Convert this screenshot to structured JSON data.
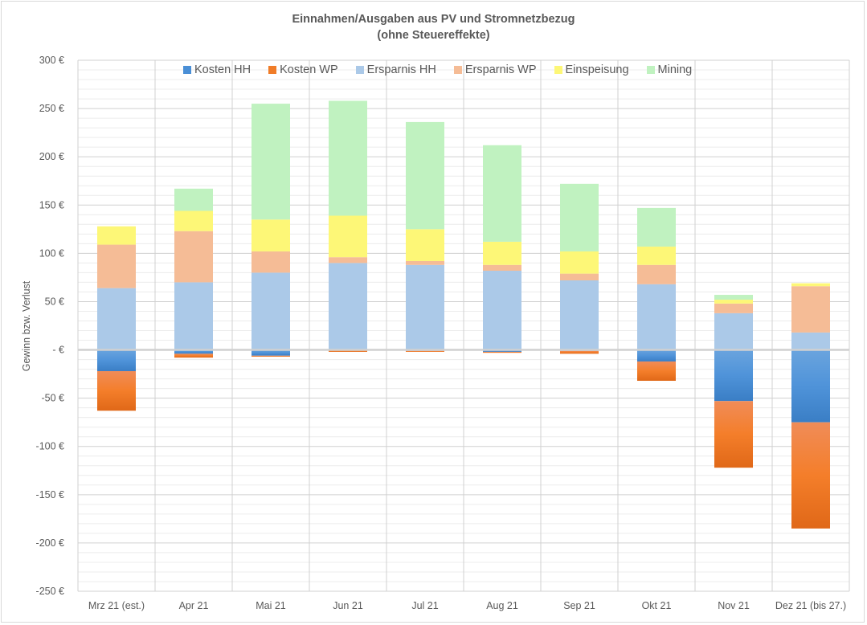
{
  "chart_data": {
    "type": "bar",
    "stacked": true,
    "title": "Einnahmen/Ausgaben aus PV und Stromnetzbezug",
    "subtitle": "(ohne Steuereffekte)",
    "xlabel": "",
    "ylabel": "Gewinn bzw. Verlust",
    "ylim": [
      -250,
      300
    ],
    "yticks": [
      300,
      250,
      200,
      150,
      100,
      50,
      0,
      -50,
      -100,
      -150,
      -200,
      -250
    ],
    "ytick_labels": [
      "300 €",
      "250 €",
      "200 €",
      "150 €",
      "100 €",
      "50 €",
      "-   €",
      "-50 €",
      "-100 €",
      "-150 €",
      "-200 €",
      "-250 €"
    ],
    "grid": true,
    "legend_position": "top",
    "categories": [
      "Mrz 21 (est.)",
      "Apr 21",
      "Mai 21",
      "Jun 21",
      "Jul 21",
      "Aug 21",
      "Sep 21",
      "Okt 21",
      "Nov 21",
      "Dez 21 (bis 27.)"
    ],
    "series": [
      {
        "name": "Kosten HH",
        "color": "#4a8fd6",
        "values": [
          -22,
          -4,
          -6,
          0,
          -1,
          -2,
          -1,
          -12,
          -53,
          -75
        ]
      },
      {
        "name": "Kosten WP",
        "color": "#f07c28",
        "values": [
          -41,
          -4,
          -1,
          -2,
          -1,
          -1,
          -3,
          -20,
          -69,
          -110
        ]
      },
      {
        "name": "Ersparnis HH",
        "color": "#abc9e8",
        "values": [
          64,
          70,
          80,
          90,
          88,
          82,
          72,
          68,
          38,
          18
        ]
      },
      {
        "name": "Ersparnis WP",
        "color": "#f5bc96",
        "values": [
          45,
          53,
          22,
          6,
          4,
          6,
          7,
          20,
          10,
          48
        ]
      },
      {
        "name": "Einspeisung",
        "color": "#fdf777",
        "values": [
          19,
          21,
          33,
          43,
          33,
          24,
          23,
          19,
          4,
          3
        ]
      },
      {
        "name": "Mining",
        "color": "#c0f2c0",
        "values": [
          0,
          23,
          120,
          119,
          111,
          100,
          70,
          40,
          5,
          0
        ]
      }
    ]
  }
}
